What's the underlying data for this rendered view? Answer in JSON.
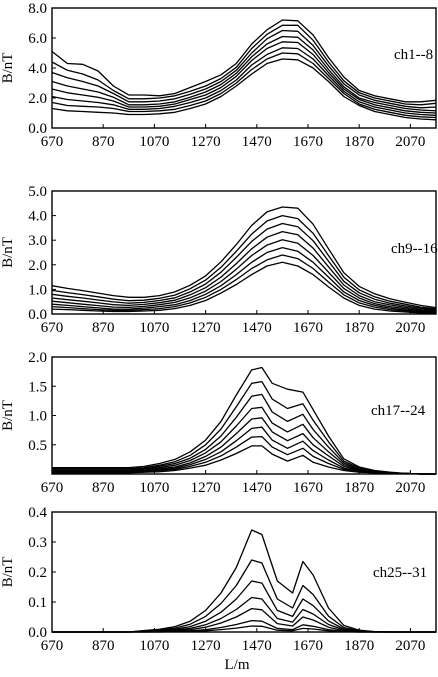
{
  "figure": {
    "xlabel": "L/m"
  },
  "chart_data": [
    {
      "type": "line",
      "label": "ch1--8",
      "ylabel": "B/nT",
      "ylim": [
        0,
        8
      ],
      "yticks": [
        "0.0",
        "2.0",
        "4.0",
        "6.0",
        "8.0"
      ],
      "yticks_v": [
        0,
        2,
        4,
        6,
        8
      ],
      "xlim": [
        670,
        2170
      ],
      "xticks": [
        670,
        870,
        1070,
        1270,
        1470,
        1670,
        1870,
        2070
      ],
      "x": [
        670,
        730,
        790,
        850,
        910,
        970,
        1030,
        1090,
        1150,
        1210,
        1270,
        1330,
        1390,
        1450,
        1510,
        1570,
        1630,
        1690,
        1750,
        1810,
        1870,
        1930,
        1990,
        2050,
        2110,
        2170
      ],
      "series": [
        {
          "values": [
            1.3,
            1.15,
            1.1,
            1.05,
            1.0,
            0.9,
            0.9,
            0.95,
            1.05,
            1.3,
            1.6,
            2.1,
            2.8,
            3.6,
            4.3,
            4.6,
            4.55,
            4.0,
            3.1,
            2.1,
            1.5,
            1.1,
            0.9,
            0.7,
            0.6,
            0.55
          ]
        },
        {
          "values": [
            1.7,
            1.5,
            1.45,
            1.4,
            1.3,
            1.1,
            1.1,
            1.15,
            1.25,
            1.5,
            1.8,
            2.3,
            3.0,
            3.9,
            4.6,
            5.0,
            4.95,
            4.3,
            3.3,
            2.3,
            1.6,
            1.25,
            1.05,
            0.85,
            0.75,
            0.7
          ]
        },
        {
          "values": [
            2.1,
            1.9,
            1.8,
            1.7,
            1.55,
            1.25,
            1.25,
            1.3,
            1.45,
            1.7,
            2.0,
            2.5,
            3.2,
            4.2,
            4.9,
            5.35,
            5.3,
            4.6,
            3.5,
            2.45,
            1.75,
            1.4,
            1.2,
            1.0,
            0.9,
            0.85
          ]
        },
        {
          "values": [
            2.6,
            2.35,
            2.2,
            2.05,
            1.8,
            1.4,
            1.4,
            1.45,
            1.6,
            1.9,
            2.2,
            2.7,
            3.45,
            4.5,
            5.3,
            5.75,
            5.7,
            4.9,
            3.7,
            2.6,
            1.9,
            1.55,
            1.35,
            1.15,
            1.05,
            1.0
          ]
        },
        {
          "values": [
            3.1,
            2.8,
            2.6,
            2.4,
            2.05,
            1.55,
            1.55,
            1.6,
            1.75,
            2.05,
            2.4,
            2.9,
            3.65,
            4.75,
            5.6,
            6.1,
            6.05,
            5.2,
            3.9,
            2.75,
            2.0,
            1.7,
            1.5,
            1.3,
            1.2,
            1.15
          ]
        },
        {
          "values": [
            3.7,
            3.35,
            3.1,
            2.8,
            2.3,
            1.75,
            1.75,
            1.8,
            1.95,
            2.25,
            2.6,
            3.1,
            3.85,
            5.0,
            5.95,
            6.5,
            6.45,
            5.5,
            4.15,
            2.95,
            2.2,
            1.85,
            1.65,
            1.45,
            1.35,
            1.4
          ]
        },
        {
          "values": [
            4.4,
            3.85,
            3.6,
            3.2,
            2.5,
            1.95,
            1.95,
            2.0,
            2.15,
            2.45,
            2.8,
            3.3,
            4.05,
            5.3,
            6.25,
            6.85,
            6.85,
            5.85,
            4.4,
            3.15,
            2.35,
            2.0,
            1.8,
            1.6,
            1.55,
            1.65
          ]
        },
        {
          "values": [
            5.1,
            4.3,
            4.25,
            3.8,
            2.8,
            2.2,
            2.2,
            2.15,
            2.3,
            2.7,
            3.1,
            3.55,
            4.3,
            5.6,
            6.55,
            7.2,
            7.15,
            6.2,
            4.7,
            3.4,
            2.5,
            2.15,
            1.95,
            1.75,
            1.75,
            1.85
          ]
        }
      ]
    },
    {
      "type": "line",
      "label": "ch9--16",
      "ylabel": "B/nT",
      "ylim": [
        0,
        5
      ],
      "yticks": [
        "0.0",
        "1.0",
        "2.0",
        "3.0",
        "4.0",
        "5.0"
      ],
      "yticks_v": [
        0,
        1,
        2,
        3,
        4,
        5
      ],
      "xlim": [
        670,
        2170
      ],
      "xticks": [
        670,
        870,
        1070,
        1270,
        1470,
        1670,
        1870,
        2070
      ],
      "x": [
        670,
        730,
        790,
        850,
        910,
        970,
        1030,
        1090,
        1150,
        1210,
        1270,
        1330,
        1390,
        1450,
        1510,
        1570,
        1630,
        1690,
        1750,
        1810,
        1870,
        1930,
        1990,
        2050,
        2110,
        2170
      ],
      "series": [
        {
          "values": [
            0.2,
            0.18,
            0.15,
            0.12,
            0.1,
            0.1,
            0.12,
            0.15,
            0.22,
            0.35,
            0.55,
            0.85,
            1.2,
            1.6,
            1.95,
            2.1,
            1.95,
            1.6,
            1.1,
            0.65,
            0.35,
            0.2,
            0.12,
            0.08,
            0.04,
            0.03
          ]
        },
        {
          "values": [
            0.3,
            0.26,
            0.22,
            0.18,
            0.15,
            0.15,
            0.18,
            0.22,
            0.3,
            0.45,
            0.68,
            1.0,
            1.4,
            1.85,
            2.2,
            2.4,
            2.25,
            1.85,
            1.3,
            0.78,
            0.45,
            0.28,
            0.18,
            0.12,
            0.07,
            0.05
          ]
        },
        {
          "values": [
            0.4,
            0.35,
            0.3,
            0.25,
            0.2,
            0.2,
            0.24,
            0.3,
            0.38,
            0.55,
            0.8,
            1.15,
            1.6,
            2.1,
            2.5,
            2.7,
            2.55,
            2.1,
            1.5,
            0.9,
            0.55,
            0.35,
            0.24,
            0.16,
            0.1,
            0.07
          ]
        },
        {
          "values": [
            0.52,
            0.46,
            0.4,
            0.34,
            0.28,
            0.27,
            0.31,
            0.38,
            0.47,
            0.66,
            0.93,
            1.32,
            1.82,
            2.38,
            2.8,
            3.02,
            2.88,
            2.38,
            1.7,
            1.04,
            0.65,
            0.42,
            0.3,
            0.21,
            0.14,
            0.1
          ]
        },
        {
          "values": [
            0.65,
            0.58,
            0.52,
            0.45,
            0.38,
            0.35,
            0.39,
            0.46,
            0.56,
            0.78,
            1.07,
            1.5,
            2.05,
            2.65,
            3.12,
            3.35,
            3.22,
            2.68,
            1.92,
            1.18,
            0.75,
            0.5,
            0.37,
            0.27,
            0.18,
            0.13
          ]
        },
        {
          "values": [
            0.8,
            0.72,
            0.65,
            0.57,
            0.49,
            0.44,
            0.47,
            0.55,
            0.66,
            0.9,
            1.22,
            1.7,
            2.3,
            2.95,
            3.45,
            3.68,
            3.55,
            2.98,
            2.15,
            1.33,
            0.86,
            0.6,
            0.44,
            0.33,
            0.23,
            0.17
          ]
        },
        {
          "values": [
            0.96,
            0.87,
            0.79,
            0.7,
            0.6,
            0.54,
            0.56,
            0.64,
            0.77,
            1.03,
            1.38,
            1.9,
            2.55,
            3.25,
            3.78,
            4.0,
            3.88,
            3.28,
            2.38,
            1.5,
            0.98,
            0.7,
            0.52,
            0.4,
            0.28,
            0.21
          ]
        },
        {
          "values": [
            1.15,
            1.04,
            0.95,
            0.85,
            0.75,
            0.68,
            0.68,
            0.75,
            0.9,
            1.17,
            1.55,
            2.12,
            2.82,
            3.6,
            4.15,
            4.35,
            4.3,
            3.65,
            2.65,
            1.68,
            1.12,
            0.82,
            0.62,
            0.48,
            0.35,
            0.26
          ]
        }
      ]
    },
    {
      "type": "line",
      "label": "ch17--24",
      "ylabel": "B/nT",
      "ylim": [
        0,
        2.0
      ],
      "yticks": [
        "0.5",
        "1.0",
        "1.5",
        "2.0"
      ],
      "yticks_v": [
        0.5,
        1.0,
        1.5,
        2.0
      ],
      "xlim": [
        670,
        2170
      ],
      "xticks": [
        670,
        870,
        1070,
        1270,
        1470,
        1670,
        1870,
        2070
      ],
      "x": [
        670,
        730,
        790,
        850,
        910,
        970,
        1030,
        1090,
        1150,
        1210,
        1270,
        1330,
        1390,
        1450,
        1490,
        1530,
        1590,
        1650,
        1690,
        1750,
        1810,
        1870,
        1930,
        1990,
        2050,
        2110,
        2170
      ],
      "series": [
        {
          "values": [
            0.02,
            0.02,
            0.02,
            0.02,
            0.02,
            0.02,
            0.03,
            0.04,
            0.06,
            0.1,
            0.15,
            0.24,
            0.35,
            0.48,
            0.48,
            0.34,
            0.22,
            0.32,
            0.2,
            0.12,
            0.06,
            0.03,
            0.02,
            0.01,
            0.01,
            0.0,
            0.0
          ]
        },
        {
          "values": [
            0.03,
            0.03,
            0.03,
            0.03,
            0.03,
            0.03,
            0.04,
            0.06,
            0.08,
            0.13,
            0.2,
            0.31,
            0.46,
            0.63,
            0.64,
            0.46,
            0.33,
            0.44,
            0.3,
            0.18,
            0.08,
            0.04,
            0.02,
            0.01,
            0.01,
            0.0,
            0.0
          ]
        },
        {
          "values": [
            0.04,
            0.04,
            0.04,
            0.04,
            0.04,
            0.04,
            0.05,
            0.07,
            0.1,
            0.16,
            0.25,
            0.38,
            0.57,
            0.78,
            0.8,
            0.58,
            0.44,
            0.56,
            0.4,
            0.24,
            0.1,
            0.05,
            0.03,
            0.01,
            0.01,
            0.0,
            0.0
          ]
        },
        {
          "values": [
            0.05,
            0.05,
            0.05,
            0.05,
            0.05,
            0.05,
            0.06,
            0.09,
            0.12,
            0.19,
            0.3,
            0.46,
            0.69,
            0.94,
            0.96,
            0.72,
            0.57,
            0.69,
            0.5,
            0.31,
            0.13,
            0.06,
            0.03,
            0.02,
            0.01,
            0.0,
            0.0
          ]
        },
        {
          "values": [
            0.06,
            0.06,
            0.06,
            0.06,
            0.06,
            0.06,
            0.08,
            0.11,
            0.15,
            0.23,
            0.36,
            0.55,
            0.82,
            1.12,
            1.14,
            0.87,
            0.72,
            0.85,
            0.62,
            0.38,
            0.16,
            0.07,
            0.04,
            0.02,
            0.01,
            0.0,
            0.0
          ]
        },
        {
          "values": [
            0.07,
            0.07,
            0.07,
            0.07,
            0.07,
            0.07,
            0.09,
            0.13,
            0.18,
            0.27,
            0.42,
            0.65,
            0.97,
            1.33,
            1.36,
            1.06,
            0.9,
            1.02,
            0.76,
            0.46,
            0.19,
            0.08,
            0.04,
            0.02,
            0.01,
            0.0,
            0.0
          ]
        },
        {
          "values": [
            0.09,
            0.09,
            0.09,
            0.09,
            0.09,
            0.09,
            0.11,
            0.15,
            0.21,
            0.32,
            0.5,
            0.77,
            1.15,
            1.55,
            1.58,
            1.28,
            1.12,
            1.2,
            0.92,
            0.55,
            0.22,
            0.1,
            0.05,
            0.02,
            0.01,
            0.0,
            0.0
          ]
        },
        {
          "values": [
            0.11,
            0.11,
            0.11,
            0.11,
            0.11,
            0.11,
            0.13,
            0.18,
            0.25,
            0.38,
            0.58,
            0.9,
            1.35,
            1.78,
            1.82,
            1.55,
            1.45,
            1.4,
            1.1,
            0.65,
            0.26,
            0.12,
            0.06,
            0.03,
            0.01,
            0.0,
            0.0
          ]
        }
      ]
    },
    {
      "type": "line",
      "label": "ch25--31",
      "ylabel": "B/nT",
      "ylim": [
        0,
        0.4
      ],
      "yticks": [
        "0.0",
        "0.1",
        "0.2",
        "0.3",
        "0.4"
      ],
      "yticks_v": [
        0,
        0.1,
        0.2,
        0.3,
        0.4
      ],
      "xlim": [
        670,
        2170
      ],
      "xticks": [
        670,
        870,
        1070,
        1270,
        1470,
        1670,
        1870,
        2070
      ],
      "x": [
        670,
        730,
        790,
        850,
        910,
        970,
        1030,
        1090,
        1150,
        1210,
        1270,
        1330,
        1390,
        1450,
        1490,
        1550,
        1610,
        1650,
        1690,
        1750,
        1810,
        1870,
        1930,
        1990,
        2050,
        2110,
        2170
      ],
      "series": [
        {
          "values": [
            0,
            0,
            0,
            0,
            0,
            0,
            0.0,
            0.0,
            0.001,
            0.002,
            0.004,
            0.008,
            0.013,
            0.02,
            0.019,
            0.006,
            0.004,
            0.012,
            0.01,
            0.004,
            0.001,
            0,
            0,
            0,
            0,
            0,
            0
          ]
        },
        {
          "values": [
            0,
            0,
            0,
            0,
            0,
            0,
            0.0,
            0.001,
            0.002,
            0.004,
            0.008,
            0.015,
            0.025,
            0.038,
            0.036,
            0.012,
            0.008,
            0.024,
            0.019,
            0.008,
            0.002,
            0,
            0,
            0,
            0,
            0,
            0
          ]
        },
        {
          "values": [
            0,
            0,
            0,
            0,
            0,
            0,
            0.001,
            0.002,
            0.004,
            0.008,
            0.016,
            0.03,
            0.05,
            0.078,
            0.074,
            0.028,
            0.02,
            0.05,
            0.04,
            0.016,
            0.004,
            0.001,
            0,
            0,
            0,
            0,
            0
          ]
        },
        {
          "values": [
            0,
            0,
            0,
            0,
            0,
            0,
            0.002,
            0.003,
            0.006,
            0.012,
            0.024,
            0.045,
            0.075,
            0.115,
            0.11,
            0.045,
            0.033,
            0.075,
            0.06,
            0.025,
            0.007,
            0.002,
            0,
            0,
            0,
            0,
            0
          ]
        },
        {
          "values": [
            0,
            0,
            0,
            0,
            0,
            0,
            0.003,
            0.005,
            0.009,
            0.018,
            0.036,
            0.066,
            0.11,
            0.17,
            0.163,
            0.072,
            0.052,
            0.11,
            0.088,
            0.037,
            0.01,
            0.003,
            0.001,
            0,
            0,
            0,
            0
          ]
        },
        {
          "values": [
            0,
            0,
            0,
            0,
            0,
            0,
            0.004,
            0.007,
            0.013,
            0.026,
            0.052,
            0.095,
            0.155,
            0.24,
            0.23,
            0.11,
            0.08,
            0.155,
            0.125,
            0.053,
            0.015,
            0.004,
            0.001,
            0,
            0,
            0,
            0
          ]
        },
        {
          "values": [
            0,
            0,
            0,
            0,
            0,
            0,
            0.005,
            0.009,
            0.018,
            0.036,
            0.072,
            0.13,
            0.215,
            0.34,
            0.325,
            0.17,
            0.13,
            0.235,
            0.19,
            0.08,
            0.022,
            0.006,
            0.001,
            0,
            0,
            0,
            0
          ]
        }
      ]
    }
  ]
}
